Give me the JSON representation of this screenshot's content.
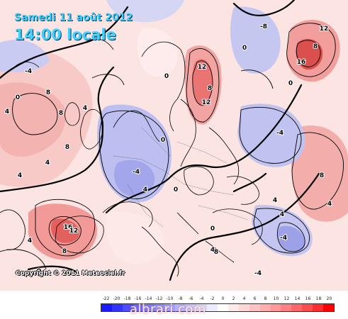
{
  "header": {
    "date": "Samedi 11 août 2012",
    "time": "14:00 locale"
  },
  "copyright": "Copyright © 2011 Meteociel.fr",
  "watermark": "albrari.com",
  "legend": {
    "labels": [
      "-22",
      "-20",
      "-18",
      "-16",
      "-14",
      "-12",
      "-10",
      "-8",
      "-6",
      "-4",
      "-2",
      "0",
      "2",
      "4",
      "6",
      "8",
      "10",
      "12",
      "14",
      "16",
      "18",
      "20"
    ],
    "colors": [
      "#1a1aff",
      "#3333ff",
      "#4d4dff",
      "#6666ff",
      "#7a7aff",
      "#8d8dff",
      "#a0a0ff",
      "#b3b3ff",
      "#c6c6ff",
      "#d9d9ff",
      "#ececff",
      "#ffffff",
      "#ffeaea",
      "#ffd6d6",
      "#ffc2c2",
      "#ffadad",
      "#ff9999",
      "#ff8080",
      "#ff6666",
      "#ff4d4d",
      "#ff2e2e",
      "#ff0000"
    ]
  },
  "contour_labels": {
    "positive": [
      "4",
      "8",
      "12",
      "16"
    ],
    "negative": [
      "-4",
      "-8"
    ],
    "zero": "0"
  },
  "colors": {
    "warm": "#f4a6a6",
    "cool": "#b4b8ec",
    "contour": "#000000"
  }
}
